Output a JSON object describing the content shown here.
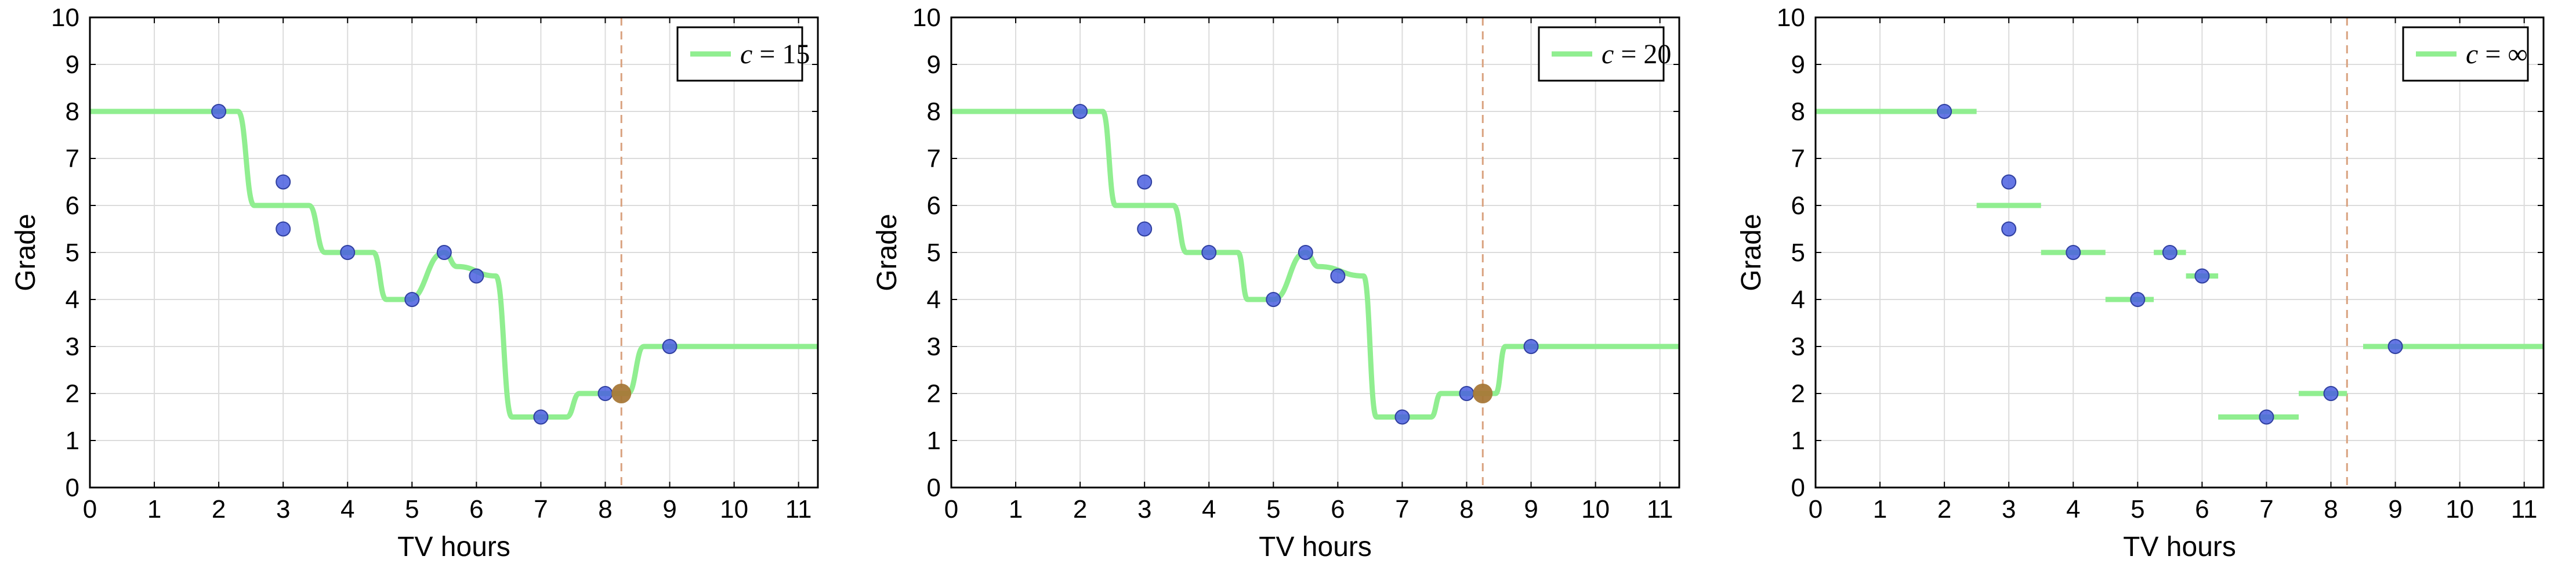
{
  "chart_data": [
    {
      "type": "line",
      "xlabel": "TV hours",
      "ylabel": "Grade",
      "xlim": [
        0,
        11.3
      ],
      "ylim": [
        0,
        10
      ],
      "x_ticks": [
        0,
        1,
        2,
        3,
        4,
        5,
        6,
        7,
        8,
        9,
        10,
        11
      ],
      "y_ticks": [
        0,
        1,
        2,
        3,
        4,
        5,
        6,
        7,
        8,
        9,
        10
      ],
      "grid": true,
      "legend_position": "top-right",
      "legend": {
        "var": "c",
        "eq": " = ",
        "value": "15"
      },
      "curve_style": "smooth",
      "curve": [
        [
          0,
          8
        ],
        [
          2.3,
          8
        ],
        [
          2.55,
          6
        ],
        [
          3.4,
          6
        ],
        [
          3.65,
          5
        ],
        [
          4.4,
          5
        ],
        [
          4.6,
          4
        ],
        [
          4.95,
          4
        ],
        [
          5.5,
          5
        ],
        [
          5.7,
          4.7
        ],
        [
          6.3,
          4.5
        ],
        [
          6.55,
          1.5
        ],
        [
          7.4,
          1.5
        ],
        [
          7.6,
          2
        ],
        [
          8.35,
          2
        ],
        [
          8.6,
          3
        ],
        [
          11.3,
          3
        ]
      ],
      "points": [
        {
          "x": 2,
          "y": 8
        },
        {
          "x": 3,
          "y": 6.5
        },
        {
          "x": 3,
          "y": 5.5
        },
        {
          "x": 4,
          "y": 5
        },
        {
          "x": 5,
          "y": 4
        },
        {
          "x": 5.5,
          "y": 5
        },
        {
          "x": 6,
          "y": 4.5
        },
        {
          "x": 7,
          "y": 1.5
        },
        {
          "x": 8,
          "y": 2
        },
        {
          "x": 9,
          "y": 3
        }
      ],
      "highlight_point": {
        "x": 8.25,
        "y": 2
      },
      "vline_x": 8.25,
      "colors": {
        "curve": "#90ee90",
        "point": "#4a5fe0",
        "highlight": "#a87838",
        "vline": "#d9a27f"
      }
    },
    {
      "type": "line",
      "xlabel": "TV hours",
      "ylabel": "Grade",
      "xlim": [
        0,
        11.3
      ],
      "ylim": [
        0,
        10
      ],
      "x_ticks": [
        0,
        1,
        2,
        3,
        4,
        5,
        6,
        7,
        8,
        9,
        10,
        11
      ],
      "y_ticks": [
        0,
        1,
        2,
        3,
        4,
        5,
        6,
        7,
        8,
        9,
        10
      ],
      "grid": true,
      "legend_position": "top-right",
      "legend": {
        "var": "c",
        "eq": " = ",
        "value": "20"
      },
      "curve_style": "smooth",
      "curve": [
        [
          0,
          8
        ],
        [
          2.35,
          8
        ],
        [
          2.55,
          6
        ],
        [
          3.45,
          6
        ],
        [
          3.65,
          5
        ],
        [
          4.45,
          5
        ],
        [
          4.6,
          4
        ],
        [
          5,
          4
        ],
        [
          5.5,
          5
        ],
        [
          5.7,
          4.7
        ],
        [
          6.4,
          4.5
        ],
        [
          6.6,
          1.5
        ],
        [
          7.45,
          1.5
        ],
        [
          7.6,
          2
        ],
        [
          8.45,
          2
        ],
        [
          8.6,
          3
        ],
        [
          11.3,
          3
        ]
      ],
      "points": [
        {
          "x": 2,
          "y": 8
        },
        {
          "x": 3,
          "y": 6.5
        },
        {
          "x": 3,
          "y": 5.5
        },
        {
          "x": 4,
          "y": 5
        },
        {
          "x": 5,
          "y": 4
        },
        {
          "x": 5.5,
          "y": 5
        },
        {
          "x": 6,
          "y": 4.5
        },
        {
          "x": 7,
          "y": 1.5
        },
        {
          "x": 8,
          "y": 2
        },
        {
          "x": 9,
          "y": 3
        }
      ],
      "highlight_point": {
        "x": 8.25,
        "y": 2
      },
      "vline_x": 8.25,
      "colors": {
        "curve": "#90ee90",
        "point": "#4a5fe0",
        "highlight": "#a87838",
        "vline": "#d9a27f"
      }
    },
    {
      "type": "line",
      "xlabel": "TV hours",
      "ylabel": "Grade",
      "xlim": [
        0,
        11.3
      ],
      "ylim": [
        0,
        10
      ],
      "x_ticks": [
        0,
        1,
        2,
        3,
        4,
        5,
        6,
        7,
        8,
        9,
        10,
        11
      ],
      "y_ticks": [
        0,
        1,
        2,
        3,
        4,
        5,
        6,
        7,
        8,
        9,
        10
      ],
      "grid": true,
      "legend_position": "top-right",
      "legend": {
        "var": "c",
        "eq": " = ",
        "value": "∞"
      },
      "curve_style": "step",
      "segments": [
        [
          0,
          2.5,
          8
        ],
        [
          2.5,
          3.5,
          6
        ],
        [
          3.5,
          4.5,
          5
        ],
        [
          4.5,
          5.25,
          4
        ],
        [
          5.25,
          5.75,
          5
        ],
        [
          5.75,
          6.25,
          4.5
        ],
        [
          6.25,
          7.5,
          1.5
        ],
        [
          7.5,
          8.25,
          2
        ],
        [
          8.5,
          11.3,
          3
        ]
      ],
      "points": [
        {
          "x": 2,
          "y": 8
        },
        {
          "x": 3,
          "y": 6.5
        },
        {
          "x": 3,
          "y": 5.5
        },
        {
          "x": 4,
          "y": 5
        },
        {
          "x": 5,
          "y": 4
        },
        {
          "x": 5.5,
          "y": 5
        },
        {
          "x": 6,
          "y": 4.5
        },
        {
          "x": 7,
          "y": 1.5
        },
        {
          "x": 8,
          "y": 2
        },
        {
          "x": 9,
          "y": 3
        }
      ],
      "vline_x": 8.25,
      "colors": {
        "curve": "#90ee90",
        "point": "#4a5fe0",
        "highlight": "#a87838",
        "vline": "#d9a27f"
      }
    }
  ]
}
